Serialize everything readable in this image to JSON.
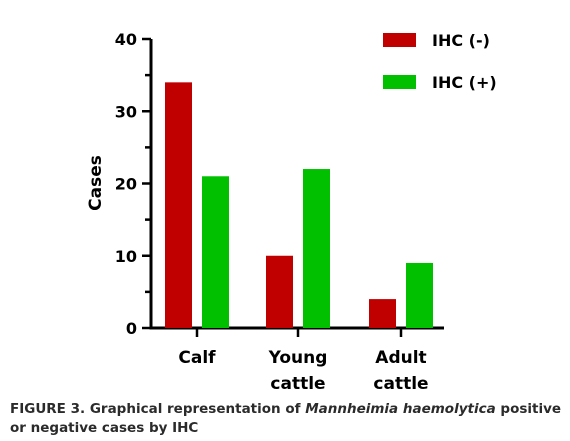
{
  "chart_data": {
    "type": "bar",
    "categories": [
      [
        "Calf"
      ],
      [
        "Young",
        "cattle"
      ],
      [
        "Adult",
        "cattle"
      ]
    ],
    "series": [
      {
        "name": "IHC (-)",
        "color": "#c00000",
        "values": [
          34,
          10,
          4
        ]
      },
      {
        "name": "IHC (+)",
        "color": "#00c000",
        "values": [
          21,
          22,
          9
        ]
      }
    ],
    "ylabel": "Cases",
    "ylim": [
      0,
      40
    ],
    "yticks": [
      0,
      10,
      20,
      30,
      40
    ],
    "grid": false,
    "legend_position": "top-right"
  },
  "caption": {
    "prefix": "FIGURE 3. Graphical representation of ",
    "italic": "Mannheimia haemolytica",
    "suffix": " positive or negative cases by IHC"
  }
}
